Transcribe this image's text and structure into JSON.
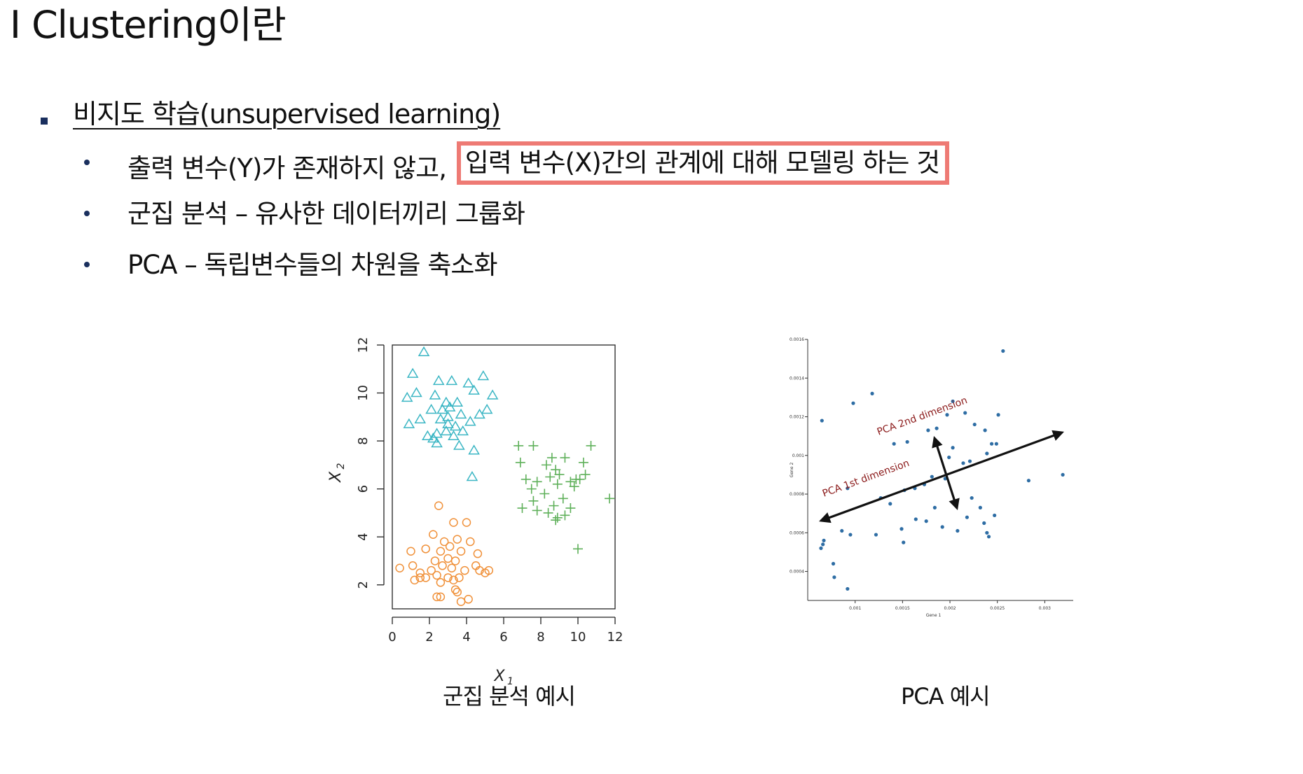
{
  "title": "I Clustering이란",
  "section": {
    "label": "비지도 학습(unsupervised learning)"
  },
  "bullets": [
    {
      "prefix": "출력 변수(Y)가 존재하지 않고, ",
      "highlight": "입력 변수(X)간의 관계에 대해 모델링 하는 것"
    },
    {
      "text": "군집 분석 – 유사한 데이터끼리 그룹화"
    },
    {
      "text": "PCA – 독립변수들의 차원을 축소화"
    }
  ],
  "colors": {
    "highlight_border": "#ee7a74",
    "bullet": "#1a2f5e",
    "triangle": "#3bb6c4",
    "plus": "#5fb05a",
    "circle": "#f0913a",
    "pca_point": "#2e6da4",
    "pca_label": "#8b1a1a"
  },
  "captions": {
    "left": "군집 분석 예시",
    "right": "PCA 예시"
  },
  "chart_data": [
    {
      "type": "scatter",
      "title": "",
      "xlabel": "X1",
      "ylabel": "X2",
      "xlim": [
        0,
        12
      ],
      "ylim": [
        1,
        12
      ],
      "xticks": [
        "0",
        "2",
        "4",
        "6",
        "8",
        "10",
        "12"
      ],
      "yticks": [
        "2",
        "4",
        "6",
        "8",
        "10",
        "12"
      ],
      "series": [
        {
          "marker": "triangle",
          "points": [
            [
              1.7,
              11.7
            ],
            [
              1.1,
              10.8
            ],
            [
              2.5,
              10.5
            ],
            [
              3.2,
              10.5
            ],
            [
              4.1,
              10.4
            ],
            [
              4.9,
              10.7
            ],
            [
              0.8,
              9.8
            ],
            [
              1.3,
              10.0
            ],
            [
              2.3,
              9.9
            ],
            [
              2.9,
              9.6
            ],
            [
              3.5,
              9.6
            ],
            [
              4.4,
              10.1
            ],
            [
              5.4,
              9.9
            ],
            [
              2.1,
              9.3
            ],
            [
              2.7,
              9.3
            ],
            [
              3.1,
              9.4
            ],
            [
              3.7,
              9.1
            ],
            [
              4.7,
              9.1
            ],
            [
              0.9,
              8.7
            ],
            [
              1.5,
              8.9
            ],
            [
              2.6,
              8.9
            ],
            [
              3.0,
              9.0
            ],
            [
              3.4,
              8.6
            ],
            [
              4.2,
              8.8
            ],
            [
              5.1,
              9.3
            ],
            [
              1.9,
              8.2
            ],
            [
              2.4,
              8.3
            ],
            [
              2.9,
              8.4
            ],
            [
              3.3,
              8.2
            ],
            [
              3.8,
              8.4
            ],
            [
              2.4,
              7.9
            ],
            [
              3.6,
              7.8
            ],
            [
              4.4,
              7.6
            ],
            [
              2.2,
              8.1
            ],
            [
              3.0,
              8.7
            ],
            [
              4.3,
              6.5
            ]
          ]
        },
        {
          "marker": "plus",
          "points": [
            [
              6.8,
              7.8
            ],
            [
              7.6,
              7.8
            ],
            [
              8.6,
              7.3
            ],
            [
              9.3,
              7.3
            ],
            [
              10.3,
              7.1
            ],
            [
              10.7,
              7.8
            ],
            [
              6.9,
              7.1
            ],
            [
              8.3,
              7.0
            ],
            [
              8.8,
              6.8
            ],
            [
              9.0,
              6.6
            ],
            [
              7.2,
              6.4
            ],
            [
              7.8,
              6.3
            ],
            [
              8.5,
              6.5
            ],
            [
              9.6,
              6.3
            ],
            [
              10.1,
              6.4
            ],
            [
              10.4,
              6.6
            ],
            [
              7.5,
              6.0
            ],
            [
              8.9,
              6.2
            ],
            [
              9.8,
              6.1
            ],
            [
              7.0,
              5.2
            ],
            [
              7.6,
              5.5
            ],
            [
              8.2,
              5.8
            ],
            [
              8.7,
              5.3
            ],
            [
              9.2,
              5.6
            ],
            [
              9.6,
              5.2
            ],
            [
              7.8,
              5.1
            ],
            [
              8.4,
              5.0
            ],
            [
              8.9,
              4.8
            ],
            [
              9.3,
              4.9
            ],
            [
              8.8,
              4.7
            ],
            [
              10.0,
              3.5
            ],
            [
              11.7,
              5.6
            ],
            [
              9.9,
              6.4
            ]
          ]
        },
        {
          "marker": "circle",
          "points": [
            [
              2.5,
              5.3
            ],
            [
              3.3,
              4.6
            ],
            [
              4.0,
              4.6
            ],
            [
              2.2,
              4.1
            ],
            [
              2.8,
              3.8
            ],
            [
              3.5,
              3.9
            ],
            [
              4.2,
              3.8
            ],
            [
              1.0,
              3.4
            ],
            [
              1.8,
              3.5
            ],
            [
              2.6,
              3.4
            ],
            [
              3.1,
              3.6
            ],
            [
              3.7,
              3.4
            ],
            [
              2.3,
              3.0
            ],
            [
              3.0,
              3.1
            ],
            [
              3.4,
              3.0
            ],
            [
              4.6,
              3.3
            ],
            [
              1.1,
              2.8
            ],
            [
              0.4,
              2.7
            ],
            [
              1.5,
              2.5
            ],
            [
              2.1,
              2.6
            ],
            [
              2.7,
              2.8
            ],
            [
              3.2,
              2.7
            ],
            [
              3.9,
              2.6
            ],
            [
              4.5,
              2.8
            ],
            [
              5.0,
              2.5
            ],
            [
              1.2,
              2.2
            ],
            [
              1.8,
              2.3
            ],
            [
              2.4,
              2.4
            ],
            [
              3.0,
              2.3
            ],
            [
              3.6,
              2.3
            ],
            [
              5.2,
              2.6
            ],
            [
              2.6,
              2.1
            ],
            [
              3.3,
              2.2
            ],
            [
              3.5,
              1.7
            ],
            [
              2.4,
              1.5
            ],
            [
              2.6,
              1.5
            ],
            [
              3.7,
              1.3
            ],
            [
              4.1,
              1.4
            ],
            [
              3.4,
              1.8
            ],
            [
              4.7,
              2.6
            ],
            [
              1.5,
              2.3
            ]
          ]
        }
      ]
    },
    {
      "type": "scatter",
      "title": "",
      "xlabel": "Gene 1",
      "ylabel": "Gene 2",
      "xlim": [
        0.0005,
        0.0033
      ],
      "ylim": [
        0.00025,
        0.0016
      ],
      "xticks": [
        "0.001",
        "0.0015",
        "0.002",
        "0.0025",
        "0.003"
      ],
      "yticks": [
        "0.0004",
        "0.0006",
        "0.0008",
        "0.001",
        "0.0012",
        "0.0014",
        "0.0016"
      ],
      "annotations": [
        "PCA 1st dimension",
        "PCA 2nd dimension"
      ],
      "points": [
        [
          0.00065,
          0.00118
        ],
        [
          0.00098,
          0.00127
        ],
        [
          0.00118,
          0.00132
        ],
        [
          0.00141,
          0.00106
        ],
        [
          0.00155,
          0.00107
        ],
        [
          0.00177,
          0.00113
        ],
        [
          0.00186,
          0.00114
        ],
        [
          0.00197,
          0.00121
        ],
        [
          0.00203,
          0.00128
        ],
        [
          0.00216,
          0.00122
        ],
        [
          0.00226,
          0.00116
        ],
        [
          0.00237,
          0.00113
        ],
        [
          0.00244,
          0.00106
        ],
        [
          0.00249,
          0.00106
        ],
        [
          0.00251,
          0.00121
        ],
        [
          0.00256,
          0.00154
        ],
        [
          0.00203,
          0.00104
        ],
        [
          0.00199,
          0.00099
        ],
        [
          0.00181,
          0.00089
        ],
        [
          0.00221,
          0.00097
        ],
        [
          0.00239,
          0.00101
        ],
        [
          0.00214,
          0.00096
        ],
        [
          0.00195,
          0.00088
        ],
        [
          0.00173,
          0.00085
        ],
        [
          0.00163,
          0.00083
        ],
        [
          0.00152,
          0.00082
        ],
        [
          0.00127,
          0.00078
        ],
        [
          0.00137,
          0.00075
        ],
        [
          0.00184,
          0.00073
        ],
        [
          0.00223,
          0.00078
        ],
        [
          0.00232,
          0.00073
        ],
        [
          0.00247,
          0.00069
        ],
        [
          0.00236,
          0.00065
        ],
        [
          0.00218,
          0.00068
        ],
        [
          0.00208,
          0.00061
        ],
        [
          0.00192,
          0.00063
        ],
        [
          0.00175,
          0.00066
        ],
        [
          0.00164,
          0.00067
        ],
        [
          0.00149,
          0.00062
        ],
        [
          0.00122,
          0.00059
        ],
        [
          0.00095,
          0.00059
        ],
        [
          0.00086,
          0.00061
        ],
        [
          0.00067,
          0.00056
        ],
        [
          0.00066,
          0.00054
        ],
        [
          0.00064,
          0.00052
        ],
        [
          0.00077,
          0.00044
        ],
        [
          0.00078,
          0.00037
        ],
        [
          0.00092,
          0.00031
        ],
        [
          0.00092,
          0.00083
        ],
        [
          0.00283,
          0.00087
        ],
        [
          0.00319,
          0.0009
        ],
        [
          0.00241,
          0.00058
        ],
        [
          0.00151,
          0.00055
        ],
        [
          0.00239,
          0.0006
        ]
      ]
    }
  ]
}
